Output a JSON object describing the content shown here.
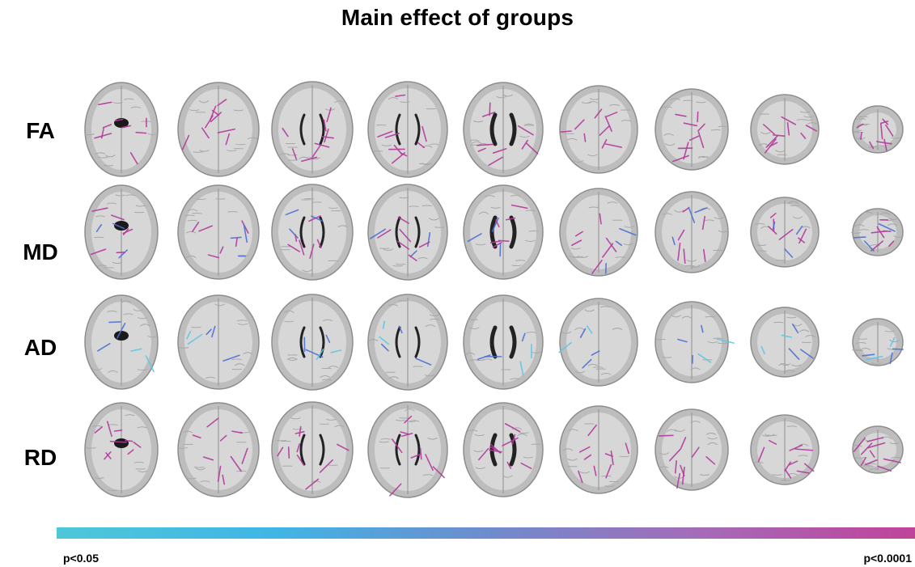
{
  "title": "Main effect of groups",
  "rows": [
    {
      "label": "FA",
      "tint": "magenta"
    },
    {
      "label": "MD",
      "tint": "mixed"
    },
    {
      "label": "AD",
      "tint": "blue"
    },
    {
      "label": "RD",
      "tint": "magenta"
    }
  ],
  "slice_count": 9,
  "colorbar": {
    "min_label": "p<0.05",
    "max_label": "p<0.0001",
    "colors": [
      "#4fc7d8",
      "#3fb6e6",
      "#6e8ccd",
      "#a56bb8",
      "#c0439a"
    ]
  },
  "colors": {
    "brain_gray": "#bdbdbd",
    "brain_outline": "#8d8d8d",
    "magenta": "#b43a9c",
    "blue": "#4b6fd6",
    "cyan": "#5cc7e8"
  }
}
